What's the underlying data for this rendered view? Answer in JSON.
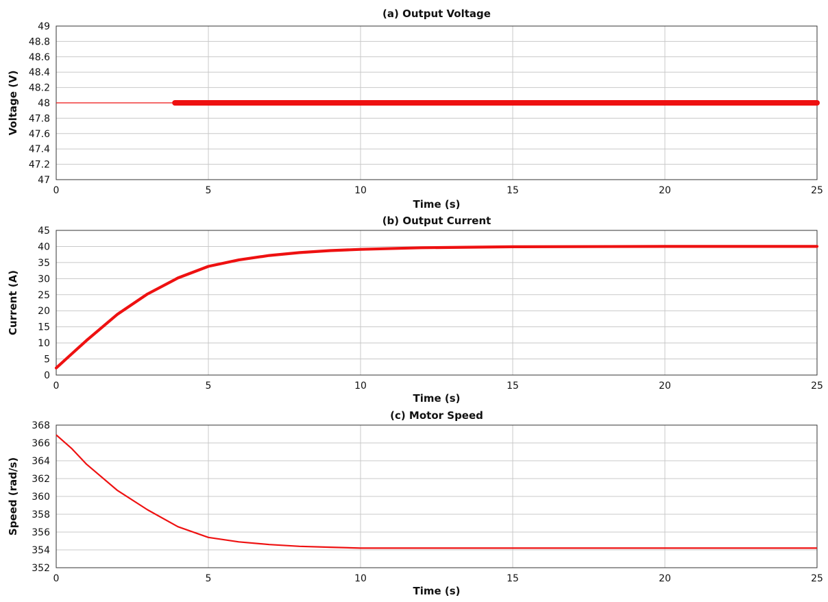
{
  "colors": {
    "line": "#ee1111",
    "grid": "#c8c8c8",
    "axis": "#333333",
    "background": "#ffffff"
  },
  "chart_data": [
    {
      "type": "line",
      "title": "(a) Output Voltage",
      "xlabel": "Time (s)",
      "ylabel": "Voltage (V)",
      "xlim": [
        0,
        25
      ],
      "ylim": [
        47,
        49
      ],
      "xticks": [
        "0",
        "5",
        "10",
        "15",
        "20",
        "25"
      ],
      "yticks": [
        "47",
        "47.2",
        "47.4",
        "47.6",
        "47.8",
        "48",
        "48.2",
        "48.4",
        "48.6",
        "48.8",
        "49"
      ],
      "grid": true,
      "series": [
        {
          "x": [
            0,
            3.9
          ],
          "y": [
            48,
            48
          ]
        },
        {
          "x": [
            3.9,
            25
          ],
          "y": [
            48,
            48
          ],
          "ripple": 0.01
        }
      ]
    },
    {
      "type": "line",
      "title": "(b) Output Current",
      "xlabel": "Time (s)",
      "ylabel": "Current (A)",
      "xlim": [
        0,
        25
      ],
      "ylim": [
        0,
        45
      ],
      "xticks": [
        "0",
        "5",
        "10",
        "15",
        "20",
        "25"
      ],
      "yticks": [
        "0",
        "5",
        "10",
        "15",
        "20",
        "25",
        "30",
        "35",
        "40",
        "45"
      ],
      "grid": true,
      "series": [
        {
          "x": [
            0,
            0.5,
            1,
            2,
            3,
            4,
            5,
            6,
            7,
            8,
            9,
            10,
            12,
            15,
            20,
            25
          ],
          "y": [
            2.2,
            6.5,
            10.8,
            18.8,
            25.2,
            30.2,
            33.8,
            35.8,
            37.2,
            38.1,
            38.7,
            39.1,
            39.6,
            39.9,
            40,
            40
          ],
          "ripple_width": 2
        }
      ]
    },
    {
      "type": "line",
      "title": "(c) Motor Speed",
      "xlabel": "Time (s)",
      "ylabel": "Speed (rad/s)",
      "xlim": [
        0,
        25
      ],
      "ylim": [
        352,
        368
      ],
      "xticks": [
        "0",
        "5",
        "10",
        "15",
        "20",
        "25"
      ],
      "yticks": [
        "352",
        "354",
        "356",
        "358",
        "360",
        "362",
        "364",
        "366",
        "368"
      ],
      "grid": true,
      "series": [
        {
          "x": [
            0,
            0.5,
            1,
            2,
            3,
            4,
            5,
            6,
            7,
            8,
            9,
            10,
            12,
            15,
            20,
            25
          ],
          "y": [
            366.9,
            365.4,
            363.6,
            360.7,
            358.5,
            356.6,
            355.4,
            354.9,
            354.6,
            354.4,
            354.3,
            354.2,
            354.2,
            354.2,
            354.2,
            354.2
          ]
        }
      ]
    }
  ]
}
